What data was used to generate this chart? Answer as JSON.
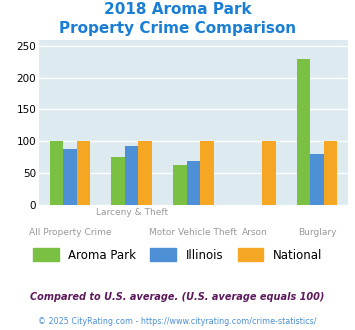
{
  "title_line1": "2018 Aroma Park",
  "title_line2": "Property Crime Comparison",
  "aroma_park": [
    100,
    75,
    63,
    0,
    230
  ],
  "illinois": [
    87,
    92,
    68,
    0,
    80
  ],
  "national": [
    100,
    100,
    100,
    100,
    100
  ],
  "x_positions": [
    0,
    1,
    2,
    3,
    4
  ],
  "top_tick_labels": [
    "",
    "Larceny & Theft",
    "",
    "",
    ""
  ],
  "bot_tick_labels": [
    "All Property Crime",
    "",
    "Motor Vehicle Theft",
    "Arson",
    "Burglary"
  ],
  "color_aroma": "#7ac143",
  "color_illinois": "#4d90d5",
  "color_national": "#f5a623",
  "ylim": [
    0,
    260
  ],
  "yticks": [
    0,
    50,
    100,
    150,
    200,
    250
  ],
  "bg_color": "#ddeaef",
  "legend_labels": [
    "Aroma Park",
    "Illinois",
    "National"
  ],
  "footnote1": "Compared to U.S. average. (U.S. average equals 100)",
  "footnote2": "© 2025 CityRating.com - https://www.cityrating.com/crime-statistics/",
  "title_color": "#1a7fd4",
  "footnote1_color": "#5c1a5c",
  "footnote2_color": "#4d90d5",
  "bar_width": 0.22
}
